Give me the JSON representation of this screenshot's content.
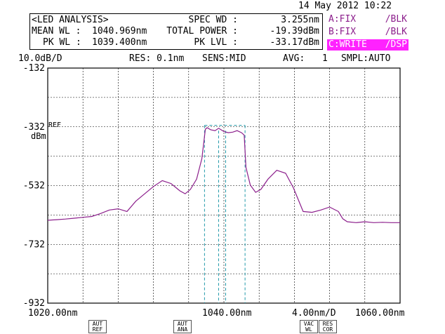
{
  "datetime": "14 May 2012 10:22",
  "analysis": {
    "title": "<LED ANALYSIS>",
    "mean_wl_label": "MEAN WL :",
    "mean_wl_value": "1040.969nm",
    "pk_wl_label": "PK WL :",
    "pk_wl_value": "1039.400nm",
    "spec_wd_label": "SPEC WD :",
    "spec_wd_value": "3.255nm",
    "total_power_label": "TOTAL POWER :",
    "total_power_value": "-19.39dBm",
    "pk_lvl_label": "PK LVL :",
    "pk_lvl_value": "-33.17dBm"
  },
  "traces": [
    {
      "name": "A:FIX",
      "mode": "/BLK"
    },
    {
      "name": "B:FIX",
      "mode": "/BLK"
    },
    {
      "name": "C:WRITE",
      "mode": "/DSP"
    }
  ],
  "settings": {
    "scale": "10.0dB/D",
    "res": "RES: 0.1nm",
    "sens": "SENS:MID",
    "avg_label": "AVG:",
    "avg_value": "1",
    "smpl": "SMPL:AUTO"
  },
  "axis": {
    "ref_marker": "REF",
    "y_unit": "dBm",
    "x_start_label": "1020.00nm",
    "x_center_label": "1040.00nm",
    "x_span_label": "4.00nm/D",
    "x_stop_label": "1060.00nm"
  },
  "softkeys": [
    {
      "line1": "AUT",
      "line2": "REF"
    },
    {
      "line1": "AUT",
      "line2": "ANA"
    },
    {
      "line1": "VAC",
      "line2": "WL"
    },
    {
      "line1": "RES",
      "line2": "COR"
    }
  ],
  "colors": {
    "trace": "#8c1f8c",
    "marker": "#2299aa",
    "highlight": "#ff22ff"
  },
  "chart_data": {
    "type": "line",
    "xlabel": "",
    "ylabel": "dBm",
    "xlim": [
      1020,
      1060
    ],
    "ylim": [
      -932,
      -132
    ],
    "y_ticks": [
      -132,
      -332,
      -532,
      -732,
      -932
    ],
    "y_tick_labels": [
      "-132",
      "-332",
      "-532",
      "-732",
      "-932"
    ],
    "grid": true,
    "series": [
      {
        "x": [
          1020,
          1021,
          1022,
          1023,
          1024,
          1025,
          1026,
          1027,
          1028,
          1029,
          1030,
          1031,
          1032,
          1033,
          1034,
          1035,
          1035.6,
          1036.2,
          1036.9,
          1037.5,
          1037.9,
          1038.1,
          1038.5,
          1039.0,
          1039.4,
          1040.0,
          1040.5,
          1041.0,
          1041.5,
          1042.0,
          1042.3,
          1042.5,
          1043.0,
          1043.6,
          1044.2,
          1045.0,
          1046.0,
          1047.0,
          1047.9,
          1049.0,
          1050.0,
          1051.0,
          1052.0,
          1053.0,
          1053.5,
          1054.0,
          1055.0,
          1056.0,
          1057.0,
          1058.0,
          1059.0,
          1060.0
        ],
        "y": [
          -650,
          -648,
          -646,
          -643,
          -640,
          -637,
          -627,
          -615,
          -611,
          -620,
          -585,
          -560,
          -535,
          -515,
          -525,
          -550,
          -560,
          -545,
          -510,
          -440,
          -340,
          -335,
          -342,
          -345,
          -337,
          -348,
          -352,
          -350,
          -345,
          -352,
          -360,
          -470,
          -530,
          -555,
          -545,
          -510,
          -480,
          -490,
          -540,
          -620,
          -623,
          -615,
          -605,
          -620,
          -645,
          -655,
          -658,
          -655,
          -658,
          -657,
          -658,
          -658
        ]
      }
    ]
  }
}
